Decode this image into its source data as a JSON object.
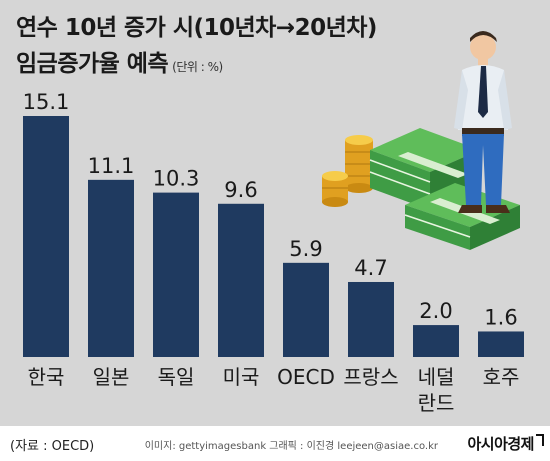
{
  "header": {
    "title_line1": "연수 10년 증가 시(10년차→20년차)",
    "title_line2": "임금증가율 예측",
    "unit": "(단위 : %)"
  },
  "footer": {
    "source": "(자료 : OECD)",
    "credit": "이미지: gettyimagesbank   그래픽 : 이진경 leejeen@asiae.co.kr",
    "brand": "아시아경제"
  },
  "colors": {
    "bar": "#1f3a60",
    "background": "#d6d6d6",
    "text": "#1a1a1a"
  },
  "illustration": "businessman-standing-on-money-stacks-with-coins",
  "chart_data": {
    "type": "bar",
    "categories": [
      [
        "한국"
      ],
      [
        "일본"
      ],
      [
        "독일"
      ],
      [
        "미국"
      ],
      [
        "OECD"
      ],
      [
        "프랑스"
      ],
      [
        "네덜",
        "란드"
      ],
      [
        "호주"
      ]
    ],
    "values": [
      15.1,
      11.1,
      10.3,
      9.6,
      5.9,
      4.7,
      2.0,
      1.6
    ],
    "value_labels": [
      "15.1",
      "11.1",
      "10.3",
      "9.6",
      "5.9",
      "4.7",
      "2.0",
      "1.6"
    ],
    "ylim": [
      0,
      15.1
    ],
    "grid": false,
    "legend": "none"
  }
}
